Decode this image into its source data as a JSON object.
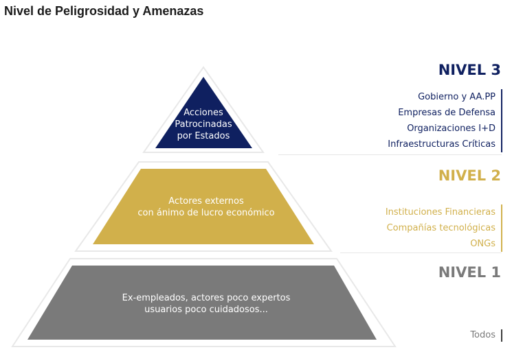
{
  "title": "Nivel de Peligrosidad y Amenazas",
  "colors": {
    "nivel3": "#0f2060",
    "nivel2": "#d1b04b",
    "nivel1": "#7a7a7a",
    "outline": "#e8e8e8"
  },
  "pyramid": {
    "top": {
      "lines": [
        "Acciones",
        "Patrocinadas",
        "por Estados"
      ]
    },
    "middle": {
      "lines": [
        "Actores externos",
        "con ánimo de lucro económico"
      ]
    },
    "bottom": {
      "lines": [
        "Ex-empleados, actores poco expertos",
        "usuarios poco cuidadosos..."
      ]
    }
  },
  "levels": {
    "nivel3": {
      "heading": "NIVEL 3",
      "items": [
        "Gobierno y AA.PP",
        "Empresas de Defensa",
        "Organizaciones I+D",
        "Infraestructuras Críticas"
      ]
    },
    "nivel2": {
      "heading": "NIVEL 2",
      "items": [
        "Instituciones Financieras",
        "Compañías tecnológicas",
        "ONGs"
      ]
    },
    "nivel1": {
      "heading": "NIVEL 1",
      "items": [
        "Todos"
      ]
    }
  }
}
